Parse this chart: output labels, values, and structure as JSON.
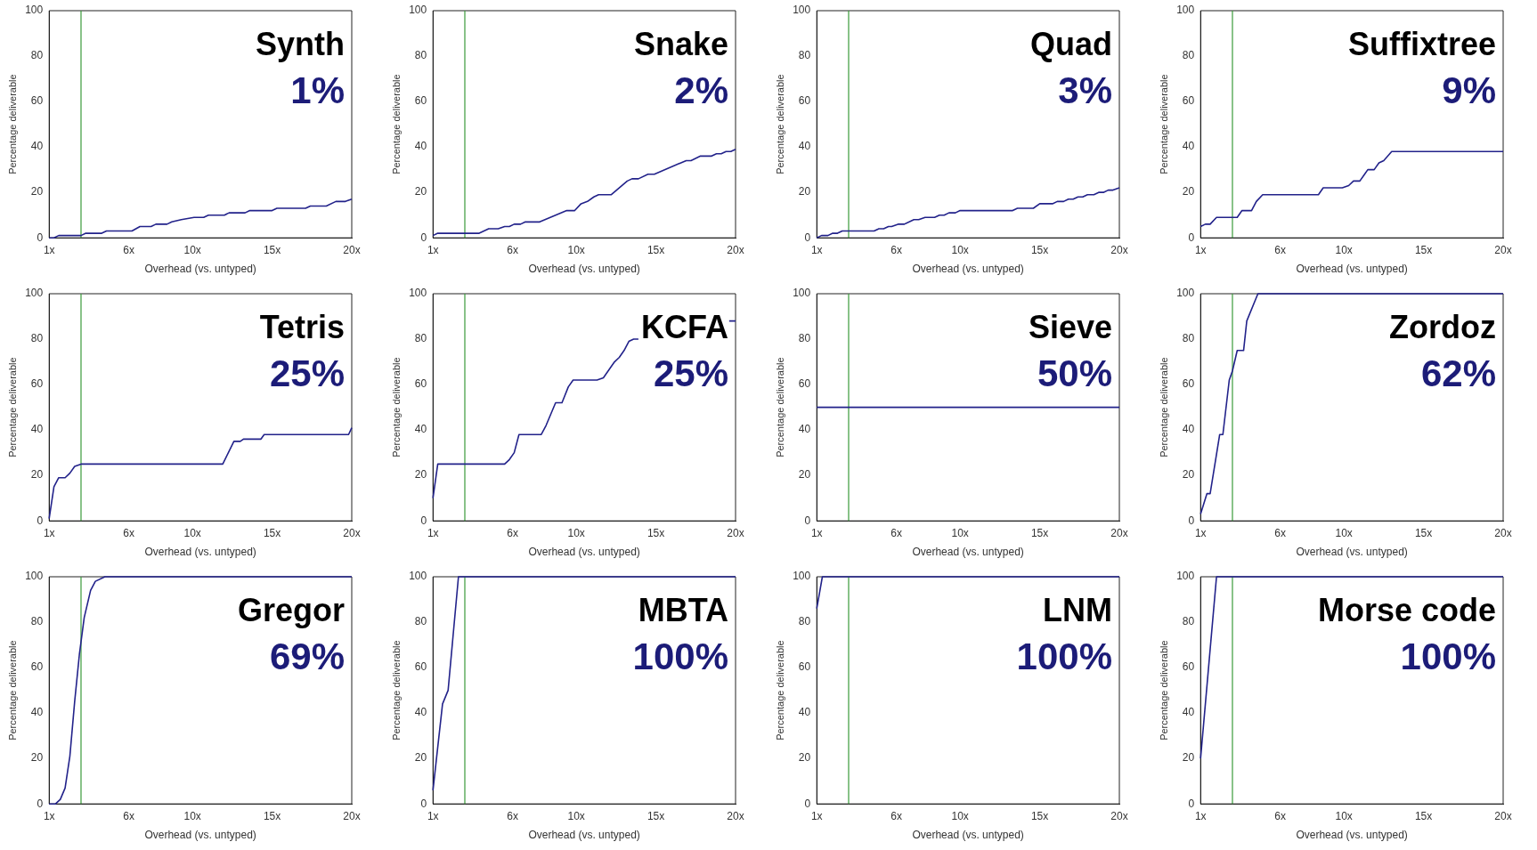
{
  "chart_data": [
    {
      "type": "line",
      "title": "Synth",
      "annotations": [
        "1%"
      ],
      "xlabel": "Overhead (vs. untyped)",
      "ylabel": "Percentage deliverable",
      "xlim": [
        1,
        20
      ],
      "xticks": [
        {
          "value": 1,
          "label": "1x"
        },
        {
          "value": 6,
          "label": "6x"
        },
        {
          "value": 10,
          "label": "10x"
        },
        {
          "value": 15,
          "label": "15x"
        },
        {
          "value": 20,
          "label": "20x"
        }
      ],
      "ylim": [
        0,
        100
      ],
      "yticks": [
        0,
        20,
        40,
        60,
        80,
        100
      ],
      "marker": "none",
      "line_style": "solid",
      "ref_lines": [
        {
          "axis": "x",
          "value": 3,
          "color": "#3a9a3a"
        }
      ],
      "series": [
        {
          "color": "#22228a",
          "x": [
            1,
            1.3,
            1.6,
            3,
            3.3,
            4.3,
            4.6,
            6.2,
            6.7,
            7.4,
            7.7,
            8.4,
            8.7,
            9.3,
            10.1,
            10.7,
            11,
            12,
            12.3,
            13.3,
            13.6,
            15,
            15.3,
            17.1,
            17.4,
            18.4,
            19,
            19.6,
            20
          ],
          "values": [
            0,
            0,
            1,
            1,
            2,
            2,
            3,
            3,
            5,
            5,
            6,
            6,
            7,
            8,
            9,
            9,
            10,
            10,
            11,
            11,
            12,
            12,
            13,
            13,
            14,
            14,
            16,
            16,
            17
          ]
        }
      ]
    },
    {
      "type": "line",
      "title": "Snake",
      "annotations": [
        "2%"
      ],
      "xlabel": "Overhead (vs. untyped)",
      "ylabel": "Percentage deliverable",
      "xlim": [
        1,
        20
      ],
      "xticks": [
        {
          "value": 1,
          "label": "1x"
        },
        {
          "value": 6,
          "label": "6x"
        },
        {
          "value": 10,
          "label": "10x"
        },
        {
          "value": 15,
          "label": "15x"
        },
        {
          "value": 20,
          "label": "20x"
        }
      ],
      "ylim": [
        0,
        100
      ],
      "yticks": [
        0,
        20,
        40,
        60,
        80,
        100
      ],
      "marker": "none",
      "line_style": "solid",
      "ref_lines": [
        {
          "axis": "x",
          "value": 3,
          "color": "#3a9a3a"
        }
      ],
      "series": [
        {
          "color": "#22228a",
          "x": [
            1,
            1.3,
            3.9,
            4.5,
            5.1,
            5.5,
            5.8,
            6.1,
            6.5,
            6.8,
            7.7,
            9.4,
            9.9,
            10.3,
            10.7,
            11.1,
            11.4,
            12.2,
            13.2,
            13.5,
            13.9,
            14.5,
            14.9,
            16.9,
            17.2,
            17.8,
            18.5,
            18.8,
            19.1,
            19.4,
            19.7,
            20
          ],
          "values": [
            1,
            2,
            2,
            4,
            4,
            5,
            5,
            6,
            6,
            7,
            7,
            12,
            12,
            15,
            16,
            18,
            19,
            19,
            25,
            26,
            26,
            28,
            28,
            34,
            34,
            36,
            36,
            37,
            37,
            38,
            38,
            39
          ]
        }
      ]
    },
    {
      "type": "line",
      "title": "Quad",
      "annotations": [
        "3%"
      ],
      "xlabel": "Overhead (vs. untyped)",
      "ylabel": "Percentage deliverable",
      "xlim": [
        1,
        20
      ],
      "xticks": [
        {
          "value": 1,
          "label": "1x"
        },
        {
          "value": 6,
          "label": "6x"
        },
        {
          "value": 10,
          "label": "10x"
        },
        {
          "value": 15,
          "label": "15x"
        },
        {
          "value": 20,
          "label": "20x"
        }
      ],
      "ylim": [
        0,
        100
      ],
      "yticks": [
        0,
        20,
        40,
        60,
        80,
        100
      ],
      "marker": "none",
      "line_style": "solid",
      "ref_lines": [
        {
          "axis": "x",
          "value": 3,
          "color": "#3a9a3a"
        }
      ],
      "series": [
        {
          "color": "#22228a",
          "x": [
            1,
            1.3,
            1.7,
            2,
            2.3,
            2.6,
            4.6,
            4.9,
            5.2,
            5.5,
            5.7,
            6.1,
            6.5,
            7.1,
            7.4,
            7.8,
            8.4,
            8.7,
            9,
            9.3,
            9.7,
            10,
            13.3,
            13.6,
            14.6,
            15,
            15.8,
            16.1,
            16.5,
            16.8,
            17.1,
            17.4,
            17.7,
            18,
            18.4,
            18.7,
            19,
            19.3,
            19.6,
            20
          ],
          "values": [
            0,
            1,
            1,
            2,
            2,
            3,
            3,
            4,
            4,
            5,
            5,
            6,
            6,
            8,
            8,
            9,
            9,
            10,
            10,
            11,
            11,
            12,
            12,
            13,
            13,
            15,
            15,
            16,
            16,
            17,
            17,
            18,
            18,
            19,
            19,
            20,
            20,
            21,
            21,
            22
          ]
        }
      ]
    },
    {
      "type": "line",
      "title": "Suffixtree",
      "annotations": [
        "9%"
      ],
      "xlabel": "Overhead (vs. untyped)",
      "ylabel": "Percentage deliverable",
      "xlim": [
        1,
        20
      ],
      "xticks": [
        {
          "value": 1,
          "label": "1x"
        },
        {
          "value": 6,
          "label": "6x"
        },
        {
          "value": 10,
          "label": "10x"
        },
        {
          "value": 15,
          "label": "15x"
        },
        {
          "value": 20,
          "label": "20x"
        }
      ],
      "ylim": [
        0,
        100
      ],
      "yticks": [
        0,
        20,
        40,
        60,
        80,
        100
      ],
      "marker": "none",
      "line_style": "solid",
      "ref_lines": [
        {
          "axis": "x",
          "value": 3,
          "color": "#3a9a3a"
        }
      ],
      "series": [
        {
          "color": "#22228a",
          "x": [
            1,
            1.3,
            1.6,
            2,
            3.3,
            3.6,
            4.2,
            4.5,
            4.9,
            8.4,
            8.7,
            9.9,
            10.3,
            10.6,
            11,
            11.3,
            11.5,
            11.9,
            12.2,
            12.5,
            13,
            20
          ],
          "values": [
            5,
            6,
            6,
            9,
            9,
            12,
            12,
            16,
            19,
            19,
            22,
            22,
            23,
            25,
            25,
            28,
            30,
            30,
            33,
            34,
            38,
            38
          ]
        }
      ]
    },
    {
      "type": "line",
      "title": "Tetris",
      "annotations": [
        "25%"
      ],
      "xlabel": "Overhead (vs. untyped)",
      "ylabel": "Percentage deliverable",
      "xlim": [
        1,
        20
      ],
      "xticks": [
        {
          "value": 1,
          "label": "1x"
        },
        {
          "value": 6,
          "label": "6x"
        },
        {
          "value": 10,
          "label": "10x"
        },
        {
          "value": 15,
          "label": "15x"
        },
        {
          "value": 20,
          "label": "20x"
        }
      ],
      "ylim": [
        0,
        100
      ],
      "yticks": [
        0,
        20,
        40,
        60,
        80,
        100
      ],
      "marker": "none",
      "line_style": "solid",
      "ref_lines": [
        {
          "axis": "x",
          "value": 3,
          "color": "#3a9a3a"
        }
      ],
      "series": [
        {
          "color": "#22228a",
          "x": [
            1,
            1.3,
            1.6,
            2,
            2.3,
            2.6,
            3,
            11.9,
            12.6,
            13,
            13.2,
            14.3,
            14.5,
            19.8,
            20
          ],
          "values": [
            1,
            15,
            19,
            19,
            21,
            24,
            25,
            25,
            35,
            35,
            36,
            36,
            38,
            38,
            41
          ]
        }
      ]
    },
    {
      "type": "line",
      "title": "KCFA",
      "annotations": [
        "25%"
      ],
      "xlabel": "Overhead (vs. untyped)",
      "ylabel": "Percentage deliverable",
      "xlim": [
        1,
        20
      ],
      "xticks": [
        {
          "value": 1,
          "label": "1x"
        },
        {
          "value": 6,
          "label": "6x"
        },
        {
          "value": 10,
          "label": "10x"
        },
        {
          "value": 15,
          "label": "15x"
        },
        {
          "value": 20,
          "label": "20x"
        }
      ],
      "ylim": [
        0,
        100
      ],
      "yticks": [
        0,
        20,
        40,
        60,
        80,
        100
      ],
      "marker": "none",
      "line_style": "solid",
      "ref_lines": [
        {
          "axis": "x",
          "value": 3,
          "color": "#3a9a3a"
        }
      ],
      "series": [
        {
          "color": "#22228a",
          "x": [
            1,
            1.3,
            5.5,
            5.8,
            6.1,
            6.4,
            7.8,
            8.1,
            8.4,
            8.7,
            9.1,
            9.5,
            9.8,
            11.3,
            11.7,
            12,
            12.4,
            12.7,
            13,
            13.3,
            13.6,
            13.9,
            16,
            19.6,
            20
          ],
          "values": [
            10,
            25,
            25,
            27,
            30,
            38,
            38,
            42,
            47,
            52,
            52,
            59,
            62,
            62,
            63,
            66,
            70,
            72,
            75,
            79,
            80,
            80,
            null,
            88,
            88
          ]
        }
      ]
    },
    {
      "type": "line",
      "title": "Sieve",
      "annotations": [
        "50%"
      ],
      "xlabel": "Overhead (vs. untyped)",
      "ylabel": "Percentage deliverable",
      "xlim": [
        1,
        20
      ],
      "xticks": [
        {
          "value": 1,
          "label": "1x"
        },
        {
          "value": 6,
          "label": "6x"
        },
        {
          "value": 10,
          "label": "10x"
        },
        {
          "value": 15,
          "label": "15x"
        },
        {
          "value": 20,
          "label": "20x"
        }
      ],
      "ylim": [
        0,
        100
      ],
      "yticks": [
        0,
        20,
        40,
        60,
        80,
        100
      ],
      "marker": "none",
      "line_style": "solid",
      "ref_lines": [
        {
          "axis": "x",
          "value": 3,
          "color": "#3a9a3a"
        }
      ],
      "series": [
        {
          "color": "#22228a",
          "x": [
            1,
            20
          ],
          "values": [
            50,
            50
          ]
        }
      ]
    },
    {
      "type": "line",
      "title": "Zordoz",
      "annotations": [
        "62%"
      ],
      "xlabel": "Overhead (vs. untyped)",
      "ylabel": "Percentage deliverable",
      "xlim": [
        1,
        20
      ],
      "xticks": [
        {
          "value": 1,
          "label": "1x"
        },
        {
          "value": 6,
          "label": "6x"
        },
        {
          "value": 10,
          "label": "10x"
        },
        {
          "value": 15,
          "label": "15x"
        },
        {
          "value": 20,
          "label": "20x"
        }
      ],
      "ylim": [
        0,
        100
      ],
      "yticks": [
        0,
        20,
        40,
        60,
        80,
        100
      ],
      "marker": "none",
      "line_style": "solid",
      "ref_lines": [
        {
          "axis": "x",
          "value": 3,
          "color": "#3a9a3a"
        }
      ],
      "series": [
        {
          "color": "#22228a",
          "x": [
            1,
            1.4,
            1.6,
            2.2,
            2.4,
            2.8,
            3,
            3.3,
            3.7,
            3.9,
            4.6,
            20
          ],
          "values": [
            3,
            12,
            12,
            38,
            38,
            62,
            66,
            75,
            75,
            88,
            100,
            100
          ]
        }
      ]
    },
    {
      "type": "line",
      "title": "Gregor",
      "annotations": [
        "69%"
      ],
      "xlabel": "Overhead (vs. untyped)",
      "ylabel": "Percentage deliverable",
      "xlim": [
        1,
        20
      ],
      "xticks": [
        {
          "value": 1,
          "label": "1x"
        },
        {
          "value": 6,
          "label": "6x"
        },
        {
          "value": 10,
          "label": "10x"
        },
        {
          "value": 15,
          "label": "15x"
        },
        {
          "value": 20,
          "label": "20x"
        }
      ],
      "ylim": [
        0,
        100
      ],
      "yticks": [
        0,
        20,
        40,
        60,
        80,
        100
      ],
      "marker": "none",
      "line_style": "solid",
      "ref_lines": [
        {
          "axis": "x",
          "value": 3,
          "color": "#3a9a3a"
        }
      ],
      "series": [
        {
          "color": "#22228a",
          "x": [
            1,
            1.4,
            1.7,
            2,
            2.3,
            2.6,
            2.9,
            3.2,
            3.6,
            3.9,
            4.5,
            20
          ],
          "values": [
            0,
            0,
            2,
            7,
            21,
            45,
            66,
            82,
            94,
            98,
            100,
            100
          ]
        }
      ]
    },
    {
      "type": "line",
      "title": "MBTA",
      "annotations": [
        "100%"
      ],
      "xlabel": "Overhead (vs. untyped)",
      "ylabel": "Percentage deliverable",
      "xlim": [
        1,
        20
      ],
      "xticks": [
        {
          "value": 1,
          "label": "1x"
        },
        {
          "value": 6,
          "label": "6x"
        },
        {
          "value": 10,
          "label": "10x"
        },
        {
          "value": 15,
          "label": "15x"
        },
        {
          "value": 20,
          "label": "20x"
        }
      ],
      "ylim": [
        0,
        100
      ],
      "yticks": [
        0,
        20,
        40,
        60,
        80,
        100
      ],
      "marker": "none",
      "line_style": "solid",
      "ref_lines": [
        {
          "axis": "x",
          "value": 3,
          "color": "#3a9a3a"
        }
      ],
      "series": [
        {
          "color": "#22228a",
          "x": [
            1,
            1.6,
            1.95,
            2.6,
            20
          ],
          "values": [
            6,
            44,
            50,
            100,
            100
          ]
        }
      ]
    },
    {
      "type": "line",
      "title": "LNM",
      "annotations": [
        "100%"
      ],
      "xlabel": "Overhead (vs. untyped)",
      "ylabel": "Percentage deliverable",
      "xlim": [
        1,
        20
      ],
      "xticks": [
        {
          "value": 1,
          "label": "1x"
        },
        {
          "value": 6,
          "label": "6x"
        },
        {
          "value": 10,
          "label": "10x"
        },
        {
          "value": 15,
          "label": "15x"
        },
        {
          "value": 20,
          "label": "20x"
        }
      ],
      "ylim": [
        0,
        100
      ],
      "yticks": [
        0,
        20,
        40,
        60,
        80,
        100
      ],
      "marker": "none",
      "line_style": "solid",
      "ref_lines": [
        {
          "axis": "x",
          "value": 3,
          "color": "#3a9a3a"
        }
      ],
      "series": [
        {
          "color": "#22228a",
          "x": [
            1,
            1.35,
            20
          ],
          "values": [
            86,
            100,
            100
          ]
        }
      ]
    },
    {
      "type": "line",
      "title": "Morse code",
      "annotations": [
        "100%"
      ],
      "xlabel": "Overhead (vs. untyped)",
      "ylabel": "Percentage deliverable",
      "xlim": [
        1,
        20
      ],
      "xticks": [
        {
          "value": 1,
          "label": "1x"
        },
        {
          "value": 6,
          "label": "6x"
        },
        {
          "value": 10,
          "label": "10x"
        },
        {
          "value": 15,
          "label": "15x"
        },
        {
          "value": 20,
          "label": "20x"
        }
      ],
      "ylim": [
        0,
        100
      ],
      "yticks": [
        0,
        20,
        40,
        60,
        80,
        100
      ],
      "marker": "none",
      "line_style": "solid",
      "ref_lines": [
        {
          "axis": "x",
          "value": 3,
          "color": "#3a9a3a"
        }
      ],
      "series": [
        {
          "color": "#22228a",
          "x": [
            1,
            2,
            20
          ],
          "values": [
            20,
            100,
            100
          ]
        }
      ]
    }
  ]
}
